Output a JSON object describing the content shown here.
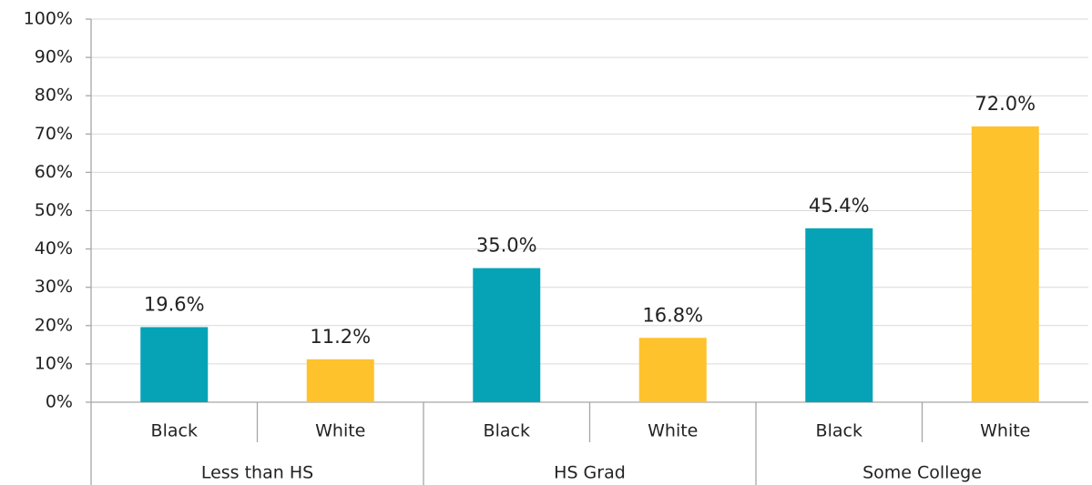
{
  "chart_data": {
    "type": "bar",
    "groups": [
      {
        "name": "Less than HS",
        "categories": [
          "Black",
          "White"
        ],
        "values": [
          19.6,
          11.2
        ],
        "value_labels": [
          "19.6%",
          "11.2%"
        ],
        "colors": [
          "#06a3b7",
          "#fec22d"
        ]
      },
      {
        "name": "HS Grad",
        "categories": [
          "Black",
          "White"
        ],
        "values": [
          35.0,
          16.8
        ],
        "value_labels": [
          "35.0%",
          "16.8%"
        ],
        "colors": [
          "#06a3b7",
          "#fec22d"
        ]
      },
      {
        "name": "Some College",
        "categories": [
          "Black",
          "White"
        ],
        "values": [
          45.4,
          72.0
        ],
        "value_labels": [
          "45.4%",
          "72.0%"
        ],
        "colors": [
          "#06a3b7",
          "#fec22d"
        ]
      }
    ],
    "ylim": [
      0,
      100
    ],
    "yticks": [
      {
        "value": 0,
        "label": "0%"
      },
      {
        "value": 10,
        "label": "10%"
      },
      {
        "value": 20,
        "label": "20%"
      },
      {
        "value": 30,
        "label": "30%"
      },
      {
        "value": 40,
        "label": "40%"
      },
      {
        "value": 50,
        "label": "50%"
      },
      {
        "value": 60,
        "label": "60%"
      },
      {
        "value": 70,
        "label": "70%"
      },
      {
        "value": 80,
        "label": "80%"
      },
      {
        "value": 90,
        "label": "90%"
      },
      {
        "value": 100,
        "label": "100%"
      }
    ],
    "grid": true
  }
}
